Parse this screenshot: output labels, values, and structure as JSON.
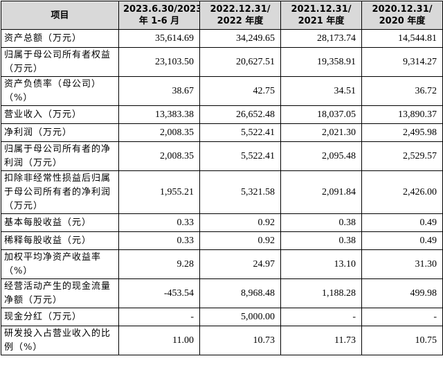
{
  "table": {
    "headers": [
      "项目",
      "2023.6.30/2023\n年 1-6 月",
      "2022.12.31/\n2022 年度",
      "2021.12.31/\n2021 年度",
      "2020.12.31/\n2020 年度"
    ],
    "rows": [
      {
        "label": "资产总额（万元）",
        "values": [
          "35,614.69",
          "34,249.65",
          "28,173.74",
          "14,544.81"
        ]
      },
      {
        "label": "归属于母公司所有者权益（万元）",
        "values": [
          "23,103.50",
          "20,627.51",
          "19,358.91",
          "9,314.27"
        ]
      },
      {
        "label": "资产负债率（母公司）（%）",
        "values": [
          "38.67",
          "42.75",
          "34.51",
          "36.72"
        ]
      },
      {
        "label": "营业收入（万元）",
        "values": [
          "13,383.38",
          "26,652.48",
          "18,037.05",
          "13,890.37"
        ]
      },
      {
        "label": "净利润（万元）",
        "values": [
          "2,008.35",
          "5,522.41",
          "2,021.30",
          "2,495.98"
        ]
      },
      {
        "label": "归属于母公司所有者的净利润（万元）",
        "values": [
          "2,008.35",
          "5,522.41",
          "2,095.48",
          "2,529.57"
        ]
      },
      {
        "label": "扣除非经常性损益后归属于母公司所有者的净利润（万元）",
        "values": [
          "1,955.21",
          "5,321.58",
          "2,091.84",
          "2,426.00"
        ]
      },
      {
        "label": "基本每股收益（元）",
        "values": [
          "0.33",
          "0.92",
          "0.38",
          "0.49"
        ]
      },
      {
        "label": "稀释每股收益（元）",
        "values": [
          "0.33",
          "0.92",
          "0.38",
          "0.49"
        ]
      },
      {
        "label": "加权平均净资产收益率（%）",
        "values": [
          "9.28",
          "24.97",
          "13.10",
          "31.30"
        ]
      },
      {
        "label": "经营活动产生的现金流量净额（万元）",
        "values": [
          "-453.54",
          "8,968.48",
          "1,188.28",
          "499.98"
        ]
      },
      {
        "label": "现金分红（万元）",
        "values": [
          "-",
          "5,000.00",
          "-",
          "-"
        ]
      },
      {
        "label": "研发投入占营业收入的比例（%）",
        "values": [
          "11.00",
          "10.73",
          "11.73",
          "10.75"
        ]
      }
    ]
  }
}
